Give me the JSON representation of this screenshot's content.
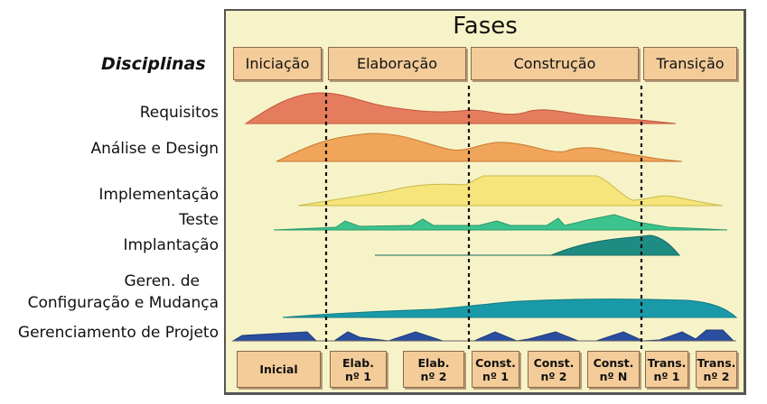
{
  "title": "Fases",
  "disciplines_heading": "Disciplinas",
  "phases": [
    "Iniciação",
    "Elaboração",
    "Construção",
    "Transição"
  ],
  "disciplines": [
    {
      "line1": "Requisitos",
      "line2": "",
      "color": "#e57c5e"
    },
    {
      "line1": "Análise e Design",
      "line2": "",
      "color": "#f0a55a"
    },
    {
      "line1": "Implementação",
      "line2": "",
      "color": "#f5e57a"
    },
    {
      "line1": "Teste",
      "line2": "",
      "color": "#3cc38e"
    },
    {
      "line1": "Implantação",
      "line2": "",
      "color": "#1f8c84"
    },
    {
      "line1": "Geren. de",
      "line2": "Configuração e Mudança",
      "color": "#1a9aa8"
    },
    {
      "line1": "Gerenciamento de Projeto",
      "line2": "",
      "color": "#2a4fa0"
    }
  ],
  "iterations": [
    {
      "line1": "Inicial",
      "line2": ""
    },
    {
      "line1": "Elab.",
      "line2": "nº 1"
    },
    {
      "line1": "Elab.",
      "line2": "nº 2"
    },
    {
      "line1": "Const.",
      "line2": "nº 1"
    },
    {
      "line1": "Const.",
      "line2": "nº 2"
    },
    {
      "line1": "Const.",
      "line2": "nº N"
    },
    {
      "line1": "Trans.",
      "line2": "nº 1"
    },
    {
      "line1": "Trans.",
      "line2": "nº 2"
    }
  ]
}
